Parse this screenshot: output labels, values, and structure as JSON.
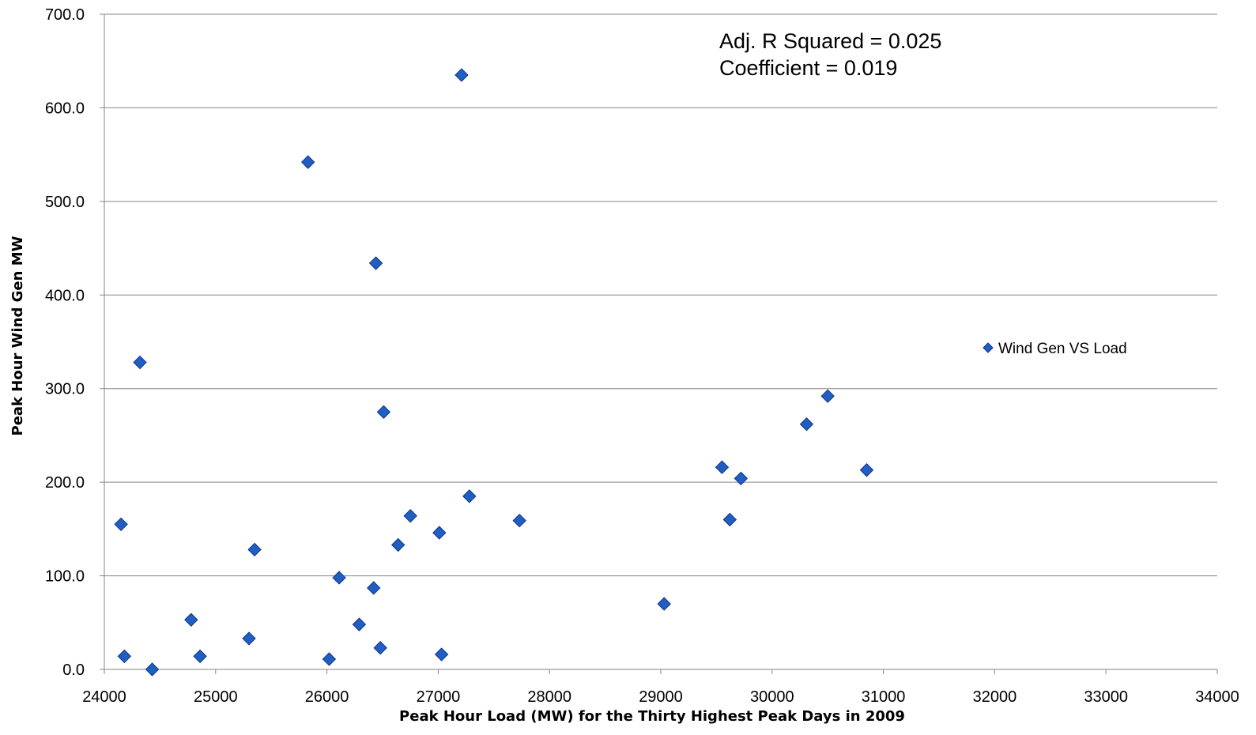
{
  "chart_data": {
    "type": "scatter",
    "xlabel": "Peak Hour Load (MW) for the  Thirty Highest Peak Days in 2009",
    "ylabel": "Peak Hour Wind Gen MW",
    "xlim": [
      24000,
      34000
    ],
    "ylim": [
      0,
      700
    ],
    "x_ticks": [
      "24000",
      "25000",
      "26000",
      "27000",
      "28000",
      "29000",
      "30000",
      "31000",
      "32000",
      "33000",
      "34000"
    ],
    "y_ticks": [
      "0.0",
      "100.0",
      "200.0",
      "300.0",
      "400.0",
      "500.0",
      "600.0",
      "700.0"
    ],
    "grid": "horizontal",
    "legend_position": "right",
    "annotations": [
      "Adj. R Squared =  0.025",
      "Coefficient = 0.019"
    ],
    "series": [
      {
        "name": "Wind Gen VS Load",
        "color": "#1F5FC2",
        "edge_color": "#12328A",
        "marker": "diamond",
        "points": [
          {
            "x": 24150,
            "y": 155
          },
          {
            "x": 24180,
            "y": 14
          },
          {
            "x": 24320,
            "y": 328
          },
          {
            "x": 24430,
            "y": 0
          },
          {
            "x": 24780,
            "y": 53
          },
          {
            "x": 24860,
            "y": 14
          },
          {
            "x": 25300,
            "y": 33
          },
          {
            "x": 25350,
            "y": 128
          },
          {
            "x": 25830,
            "y": 542
          },
          {
            "x": 26020,
            "y": 11
          },
          {
            "x": 26110,
            "y": 98
          },
          {
            "x": 26290,
            "y": 48
          },
          {
            "x": 26420,
            "y": 87
          },
          {
            "x": 26440,
            "y": 434
          },
          {
            "x": 26480,
            "y": 23
          },
          {
            "x": 26510,
            "y": 275
          },
          {
            "x": 26640,
            "y": 133
          },
          {
            "x": 26750,
            "y": 164
          },
          {
            "x": 27010,
            "y": 146
          },
          {
            "x": 27030,
            "y": 16
          },
          {
            "x": 27210,
            "y": 635
          },
          {
            "x": 27280,
            "y": 185
          },
          {
            "x": 27730,
            "y": 159
          },
          {
            "x": 29030,
            "y": 70
          },
          {
            "x": 29550,
            "y": 216
          },
          {
            "x": 29620,
            "y": 160
          },
          {
            "x": 29720,
            "y": 204
          },
          {
            "x": 30310,
            "y": 262
          },
          {
            "x": 30500,
            "y": 292
          },
          {
            "x": 30850,
            "y": 213
          }
        ]
      }
    ]
  }
}
